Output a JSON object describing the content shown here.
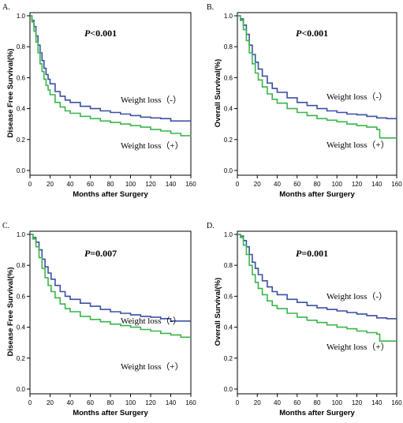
{
  "chart_data": [
    {
      "type": "line",
      "panel": "A.",
      "pvalue": "P<0.001",
      "xlabel": "Months after Surgery",
      "ylabel": "Disease Free Survival(%)",
      "xlim": [
        0,
        160
      ],
      "ylim": [
        0,
        1.0
      ],
      "xticks": [
        "0",
        "20",
        "40",
        "60",
        "80",
        "100",
        "120",
        "140",
        "160"
      ],
      "yticks": [
        "0.0",
        "0.2",
        "0.4",
        "0.6",
        "0.8",
        "1.0"
      ],
      "series": [
        {
          "name": "Weight loss (-)",
          "color": "#3a4fa3",
          "x": [
            0,
            2,
            4,
            6,
            8,
            10,
            12,
            14,
            16,
            18,
            20,
            25,
            30,
            35,
            40,
            50,
            60,
            70,
            80,
            90,
            100,
            110,
            120,
            130,
            140,
            150,
            160
          ],
          "y": [
            1.0,
            0.97,
            0.93,
            0.87,
            0.81,
            0.76,
            0.71,
            0.66,
            0.62,
            0.59,
            0.56,
            0.51,
            0.48,
            0.455,
            0.44,
            0.415,
            0.4,
            0.385,
            0.375,
            0.365,
            0.355,
            0.345,
            0.34,
            0.335,
            0.32,
            0.32,
            0.32
          ]
        },
        {
          "name": "Weight loss (+)",
          "color": "#3ab54a",
          "x": [
            0,
            2,
            4,
            6,
            8,
            10,
            12,
            14,
            16,
            18,
            20,
            25,
            30,
            35,
            40,
            50,
            60,
            70,
            80,
            90,
            100,
            110,
            120,
            130,
            140,
            150,
            160
          ],
          "y": [
            1.0,
            0.96,
            0.9,
            0.83,
            0.76,
            0.69,
            0.64,
            0.59,
            0.55,
            0.52,
            0.49,
            0.44,
            0.41,
            0.385,
            0.37,
            0.35,
            0.335,
            0.32,
            0.31,
            0.3,
            0.29,
            0.28,
            0.265,
            0.255,
            0.24,
            0.225,
            0.22
          ]
        }
      ]
    },
    {
      "type": "line",
      "panel": "B.",
      "pvalue": "P<0.001",
      "xlabel": "Months after Surgery",
      "ylabel": "Overall Survival(%)",
      "xlim": [
        0,
        160
      ],
      "ylim": [
        0,
        1.0
      ],
      "xticks": [
        "0",
        "20",
        "40",
        "60",
        "80",
        "100",
        "120",
        "140",
        "160"
      ],
      "yticks": [
        "0.0",
        "0.2",
        "0.4",
        "0.6",
        "0.8",
        "1.0"
      ],
      "series": [
        {
          "name": "Weight loss (-)",
          "color": "#3a4fa3",
          "x": [
            0,
            3,
            6,
            9,
            12,
            15,
            18,
            21,
            25,
            30,
            35,
            40,
            50,
            60,
            70,
            80,
            90,
            100,
            110,
            120,
            130,
            140,
            150,
            160
          ],
          "y": [
            1.0,
            0.98,
            0.94,
            0.88,
            0.81,
            0.75,
            0.7,
            0.655,
            0.61,
            0.565,
            0.53,
            0.505,
            0.47,
            0.44,
            0.42,
            0.4,
            0.385,
            0.375,
            0.365,
            0.36,
            0.35,
            0.34,
            0.335,
            0.335
          ]
        },
        {
          "name": "Weight loss (+)",
          "color": "#3ab54a",
          "x": [
            0,
            3,
            6,
            9,
            12,
            15,
            18,
            21,
            25,
            30,
            35,
            40,
            50,
            60,
            70,
            80,
            90,
            100,
            110,
            120,
            130,
            140,
            143,
            150,
            160
          ],
          "y": [
            1.0,
            0.97,
            0.91,
            0.84,
            0.76,
            0.69,
            0.63,
            0.585,
            0.54,
            0.495,
            0.46,
            0.435,
            0.4,
            0.375,
            0.355,
            0.335,
            0.325,
            0.315,
            0.3,
            0.29,
            0.28,
            0.265,
            0.21,
            0.21,
            0.21
          ]
        }
      ]
    },
    {
      "type": "line",
      "panel": "C.",
      "pvalue": "P=0.007",
      "xlabel": "Months after Surgery",
      "ylabel": "Disease Free Survival(%)",
      "xlim": [
        0,
        160
      ],
      "ylim": [
        0,
        1.0
      ],
      "xticks": [
        "0",
        "20",
        "40",
        "60",
        "80",
        "100",
        "120",
        "140",
        "160"
      ],
      "yticks": [
        "0.0",
        "0.2",
        "0.4",
        "0.6",
        "0.8",
        "1.0"
      ],
      "series": [
        {
          "name": "Weight loss (-)",
          "color": "#3a4fa3",
          "x": [
            0,
            3,
            6,
            9,
            12,
            15,
            18,
            21,
            25,
            30,
            35,
            40,
            50,
            60,
            70,
            80,
            90,
            100,
            110,
            120,
            130,
            140,
            150,
            160
          ],
          "y": [
            1.0,
            0.98,
            0.95,
            0.9,
            0.84,
            0.79,
            0.75,
            0.71,
            0.67,
            0.63,
            0.6,
            0.58,
            0.555,
            0.535,
            0.515,
            0.5,
            0.49,
            0.48,
            0.47,
            0.465,
            0.455,
            0.44,
            0.44,
            0.44
          ]
        },
        {
          "name": "Weight loss (+)",
          "color": "#3ab54a",
          "x": [
            0,
            3,
            6,
            9,
            12,
            15,
            18,
            21,
            25,
            30,
            35,
            40,
            50,
            60,
            70,
            80,
            90,
            100,
            110,
            120,
            130,
            140,
            150,
            160
          ],
          "y": [
            1.0,
            0.97,
            0.92,
            0.85,
            0.78,
            0.72,
            0.67,
            0.63,
            0.59,
            0.55,
            0.52,
            0.5,
            0.47,
            0.45,
            0.435,
            0.42,
            0.41,
            0.4,
            0.385,
            0.375,
            0.36,
            0.35,
            0.335,
            0.335
          ]
        }
      ]
    },
    {
      "type": "line",
      "panel": "D.",
      "pvalue": "P=0.001",
      "xlabel": "Months after Surgery",
      "ylabel": "Overall Survival(%)",
      "xlim": [
        0,
        160
      ],
      "ylim": [
        0,
        1.0
      ],
      "xticks": [
        "0",
        "20",
        "40",
        "60",
        "80",
        "100",
        "120",
        "140",
        "160"
      ],
      "yticks": [
        "0.0",
        "0.2",
        "0.4",
        "0.6",
        "0.8",
        "1.0"
      ],
      "series": [
        {
          "name": "Weight loss (-)",
          "color": "#3a4fa3",
          "x": [
            0,
            3,
            6,
            9,
            12,
            15,
            18,
            21,
            25,
            30,
            35,
            40,
            50,
            60,
            70,
            80,
            90,
            100,
            110,
            120,
            130,
            140,
            150,
            160
          ],
          "y": [
            1.0,
            0.99,
            0.96,
            0.92,
            0.87,
            0.82,
            0.78,
            0.74,
            0.7,
            0.66,
            0.63,
            0.61,
            0.58,
            0.56,
            0.54,
            0.525,
            0.515,
            0.505,
            0.495,
            0.485,
            0.475,
            0.46,
            0.455,
            0.455
          ]
        },
        {
          "name": "Weight loss (+)",
          "color": "#3ab54a",
          "x": [
            0,
            3,
            6,
            9,
            12,
            15,
            18,
            21,
            25,
            30,
            35,
            40,
            50,
            60,
            70,
            80,
            90,
            100,
            110,
            120,
            130,
            140,
            143,
            150,
            160
          ],
          "y": [
            1.0,
            0.98,
            0.93,
            0.87,
            0.8,
            0.74,
            0.69,
            0.65,
            0.61,
            0.57,
            0.54,
            0.52,
            0.49,
            0.465,
            0.445,
            0.43,
            0.415,
            0.4,
            0.39,
            0.375,
            0.365,
            0.355,
            0.31,
            0.31,
            0.31
          ]
        }
      ]
    }
  ]
}
